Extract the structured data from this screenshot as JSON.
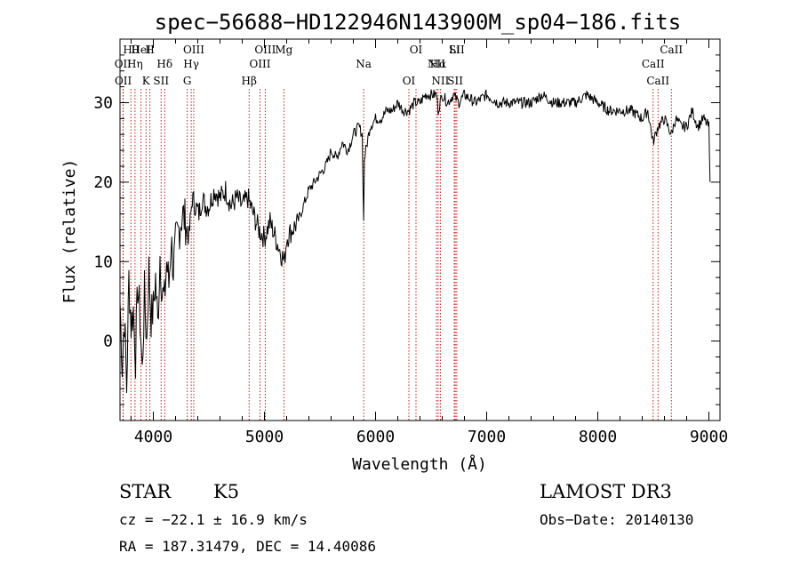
{
  "chart_data": {
    "type": "line",
    "title": "spec−56688−HD122946N143900M_sp04−186.fits",
    "xlabel": "Wavelength (Å)",
    "ylabel": "Flux (relative)",
    "xlim": [
      3700,
      9100
    ],
    "ylim": [
      -10,
      38
    ],
    "xticks": [
      4000,
      5000,
      6000,
      7000,
      8000,
      9000
    ],
    "yticks": [
      0,
      10,
      20,
      30
    ],
    "series": [
      {
        "x": [
          3700,
          3720,
          3740,
          3760,
          3780,
          3800,
          3820,
          3840,
          3860,
          3880,
          3900,
          3920,
          3940,
          3960,
          3980,
          4000,
          4020,
          4040,
          4060,
          4080,
          4100,
          4120,
          4140,
          4160,
          4180,
          4200,
          4230,
          4260,
          4290,
          4320,
          4350,
          4380,
          4410,
          4440,
          4470,
          4500,
          4550,
          4600,
          4650,
          4700,
          4750,
          4800,
          4850,
          4900,
          4950,
          5000,
          5050,
          5100,
          5150,
          5180,
          5200,
          5250,
          5300,
          5350,
          5400,
          5450,
          5500,
          5550,
          5580,
          5600,
          5650,
          5700,
          5750,
          5800,
          5850,
          5880,
          5893,
          5900,
          5950,
          6000,
          6050,
          6100,
          6150,
          6200,
          6250,
          6300,
          6350,
          6400,
          6450,
          6500,
          6550,
          6563,
          6600,
          6650,
          6700,
          6750,
          6800,
          6900,
          7000,
          7100,
          7200,
          7300,
          7400,
          7500,
          7600,
          7700,
          7800,
          7900,
          8000,
          8100,
          8200,
          8300,
          8400,
          8450,
          8498,
          8542,
          8600,
          8662,
          8700,
          8750,
          8800,
          8850,
          8900,
          8950,
          9000,
          9010
        ],
        "y": [
          5,
          -3,
          3,
          -6,
          8,
          2,
          4,
          -2,
          7,
          3,
          -4,
          6,
          0,
          9,
          3,
          4,
          8,
          2,
          11,
          6,
          5,
          10,
          7,
          13,
          9,
          12,
          14,
          16,
          15,
          13,
          18,
          17,
          16,
          18,
          17,
          17,
          19,
          18,
          19,
          17,
          18,
          17,
          18,
          16,
          14,
          13,
          15,
          13,
          11,
          10,
          13,
          14,
          15,
          17,
          19,
          20,
          21,
          22,
          23,
          24,
          23,
          25,
          24,
          26,
          27,
          26,
          15,
          23,
          27,
          28,
          28,
          29,
          29,
          30,
          29,
          29,
          30,
          30,
          31,
          31,
          31,
          29,
          31,
          30,
          31,
          30,
          31,
          30,
          31,
          30,
          30,
          30,
          30,
          31,
          30,
          30,
          30,
          31,
          30,
          29,
          29,
          29,
          28,
          29,
          25,
          27,
          28,
          26,
          28,
          27,
          27,
          29,
          27,
          28,
          27,
          20
        ]
      }
    ],
    "lines": [
      {
        "name": "Hθ",
        "x": 3798
      },
      {
        "name": "OII",
        "x": 3727
      },
      {
        "name": "OII",
        "x": 3729
      },
      {
        "name": "HeI",
        "x": 3889
      },
      {
        "name": "Hη",
        "x": 3835
      },
      {
        "name": "K",
        "x": 3934
      },
      {
        "name": "H",
        "x": 3969
      },
      {
        "name": "Hδ",
        "x": 4102
      },
      {
        "name": "SII",
        "x": 4070
      },
      {
        "name": "OIII",
        "x": 4364
      },
      {
        "name": "Hγ",
        "x": 4341
      },
      {
        "name": "G",
        "x": 4305
      },
      {
        "name": "OIII",
        "x": 5007
      },
      {
        "name": "OIII",
        "x": 4960
      },
      {
        "name": "Hβ",
        "x": 4862
      },
      {
        "name": "Mg",
        "x": 5175
      },
      {
        "name": "Na",
        "x": 5893
      },
      {
        "name": "OI",
        "x": 6300
      },
      {
        "name": "OI",
        "x": 6364
      },
      {
        "name": "Hα",
        "x": 6563
      },
      {
        "name": "SII",
        "x": 6717
      },
      {
        "name": "SII",
        "x": 6731
      },
      {
        "name": "NII",
        "x": 6548
      },
      {
        "name": "NII",
        "x": 6583
      },
      {
        "name": "Li",
        "x": 6708
      },
      {
        "name": "CaII",
        "x": 8498
      },
      {
        "name": "CaII",
        "x": 8542
      },
      {
        "name": "CaII",
        "x": 8662
      }
    ]
  },
  "info": {
    "object_class": "STAR",
    "subclass": "K5",
    "survey": "LAMOST DR3",
    "redshift": "cz = −22.1 ± 16.9 km/s",
    "obs_date": "Obs−Date: 20140130",
    "coords": "RA = 187.31479, DEC =  14.40086"
  }
}
